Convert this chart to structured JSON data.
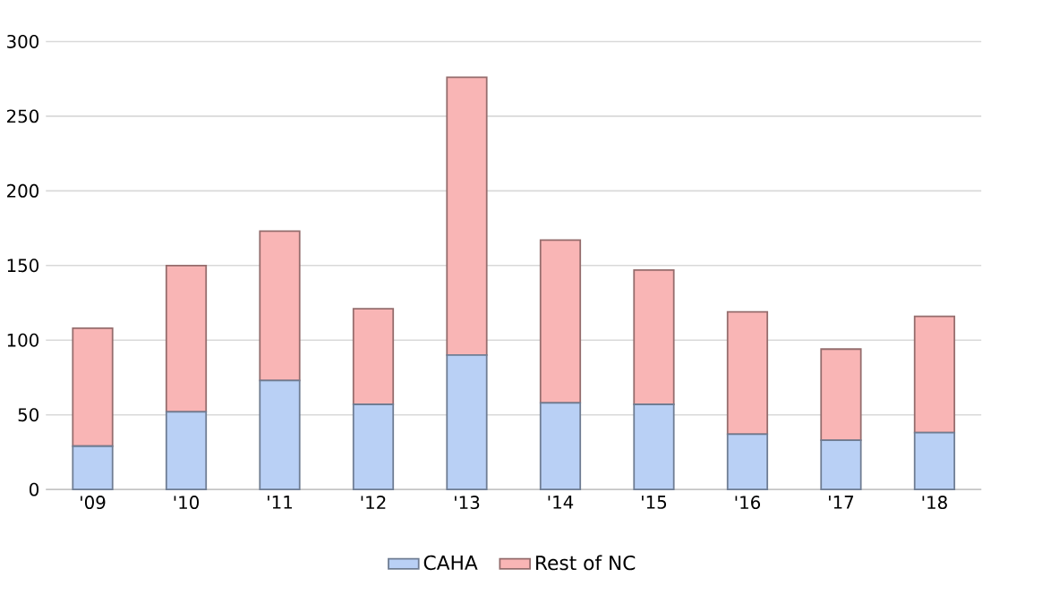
{
  "chart_data": {
    "type": "bar",
    "stacked": true,
    "categories": [
      "'09",
      "'10",
      "'11",
      "'12",
      "'13",
      "'14",
      "'15",
      "'16",
      "'17",
      "'18"
    ],
    "series": [
      {
        "name": "CAHA",
        "color": "#b9d0f5",
        "values": [
          29,
          52,
          73,
          57,
          90,
          58,
          57,
          37,
          33,
          38
        ]
      },
      {
        "name": "Rest of NC",
        "color": "#f9b5b5",
        "values": [
          79,
          98,
          100,
          64,
          186,
          109,
          90,
          82,
          61,
          78
        ]
      }
    ],
    "ylim": [
      0,
      300
    ],
    "yticks": [
      0,
      50,
      100,
      150,
      200,
      250,
      300
    ],
    "grid": "y",
    "legend": "bottom"
  }
}
